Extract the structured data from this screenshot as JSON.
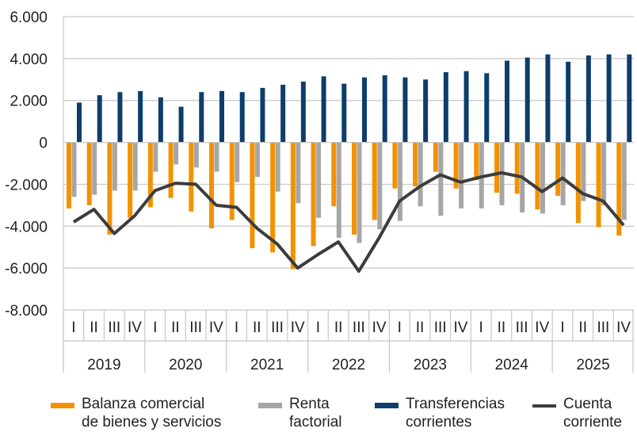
{
  "chart_data": {
    "type": "bar",
    "title": "",
    "xlabel": "",
    "ylabel": "",
    "ylim": [
      -8000,
      6000
    ],
    "yticks": [
      6000,
      4000,
      2000,
      0,
      -2000,
      -4000,
      -6000,
      -8000
    ],
    "ytick_labels": [
      "6.000",
      "4.000",
      "2.000",
      "0",
      "-2.000",
      "-4.000",
      "-6.000",
      "-8.000"
    ],
    "grid": "horizontal",
    "legend_position": "bottom",
    "years": [
      "2019",
      "2020",
      "2021",
      "2022",
      "2023",
      "2024",
      "2025"
    ],
    "quarter_labels": [
      "I",
      "II",
      "III",
      "IV"
    ],
    "series": [
      {
        "name": "Balanza comercial\nde bienes y servicios",
        "kind": "bar",
        "color": "#F39200",
        "values": [
          -3150,
          -3000,
          -4400,
          -3600,
          -3100,
          -2650,
          -3300,
          -4100,
          -3700,
          -5050,
          -5250,
          -6050,
          -4950,
          -3050,
          -4400,
          -3700,
          -2200,
          -2100,
          -1400,
          -2200,
          -1800,
          -2400,
          -2450,
          -3200,
          -2550,
          -3850,
          -4050,
          -4450
        ]
      },
      {
        "name": "Renta\nfactorial",
        "kind": "bar",
        "color": "#A6A6A6",
        "values": [
          -2600,
          -2500,
          -2300,
          -2300,
          -1400,
          -1050,
          -1200,
          -1400,
          -1900,
          -1650,
          -2350,
          -2900,
          -3600,
          -4550,
          -4800,
          -4150,
          -3750,
          -3050,
          -3500,
          -3150,
          -3150,
          -3000,
          -3350,
          -3400,
          -3000,
          -2800,
          -3000,
          -3700
        ]
      },
      {
        "name": "Transferencias\ncorrientes",
        "kind": "bar",
        "color": "#0E3D6B",
        "values": [
          1900,
          2250,
          2400,
          2450,
          2150,
          1700,
          2400,
          2450,
          2400,
          2600,
          2750,
          2900,
          3150,
          2800,
          3100,
          3200,
          3100,
          3000,
          3350,
          3400,
          3300,
          3900,
          4050,
          4200,
          3850,
          4150,
          4200,
          4200
        ]
      },
      {
        "name": "Cuenta\ncorriente",
        "kind": "line",
        "color": "#3C3C3C",
        "values": [
          -3800,
          -3200,
          -4350,
          -3500,
          -2300,
          -1950,
          -2000,
          -3000,
          -3100,
          -4100,
          -4850,
          -6000,
          -5350,
          -4750,
          -6150,
          -4550,
          -2800,
          -2100,
          -1550,
          -1900,
          -1650,
          -1450,
          -1650,
          -2350,
          -1700,
          -2450,
          -2800,
          -3950
        ]
      }
    ]
  }
}
